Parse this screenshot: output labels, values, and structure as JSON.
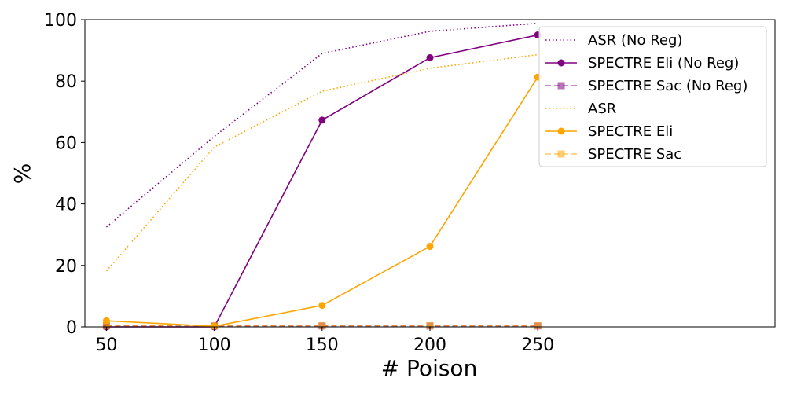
{
  "chart_data": {
    "type": "line",
    "title": "",
    "xlabel": "# Poison",
    "ylabel": "%",
    "x": [
      50,
      100,
      150,
      200,
      250
    ],
    "x_ticks": [
      "50",
      "100",
      "150",
      "200",
      "250"
    ],
    "xlim": [
      40,
      360
    ],
    "ylim": [
      0,
      100
    ],
    "y_ticks": [
      "0",
      "20",
      "40",
      "60",
      "80",
      "100"
    ],
    "grid": false,
    "legend_position": "top-right",
    "series": [
      {
        "name": "ASR (No Reg)",
        "color": "#800080",
        "line_style": "dotted",
        "marker": "none",
        "values": [
          32.5,
          62,
          89,
          96.2,
          98.8
        ]
      },
      {
        "name": "SPECTRE Eli (No Reg)",
        "color": "#800080",
        "line_style": "solid",
        "marker": "circle",
        "values": [
          0,
          0,
          67.3,
          87.6,
          95
        ]
      },
      {
        "name": "SPECTRE Sac (No Reg)",
        "color": "#800080",
        "line_style": "dashed",
        "marker": "square",
        "values": [
          0.3,
          0.3,
          0.3,
          0.3,
          0.3
        ]
      },
      {
        "name": "ASR",
        "color": "#FFA500",
        "line_style": "dotted",
        "marker": "none",
        "values": [
          18.2,
          58.5,
          76.7,
          84.2,
          88.6
        ]
      },
      {
        "name": "SPECTRE Eli",
        "color": "#FFA500",
        "line_style": "solid",
        "marker": "circle",
        "values": [
          2,
          0.2,
          7,
          26.2,
          81.3
        ]
      },
      {
        "name": "SPECTRE Sac",
        "color": "#FFA500",
        "line_style": "dashed",
        "marker": "square",
        "values": [
          0.4,
          0.4,
          0.4,
          0.4,
          0.4
        ]
      }
    ]
  }
}
